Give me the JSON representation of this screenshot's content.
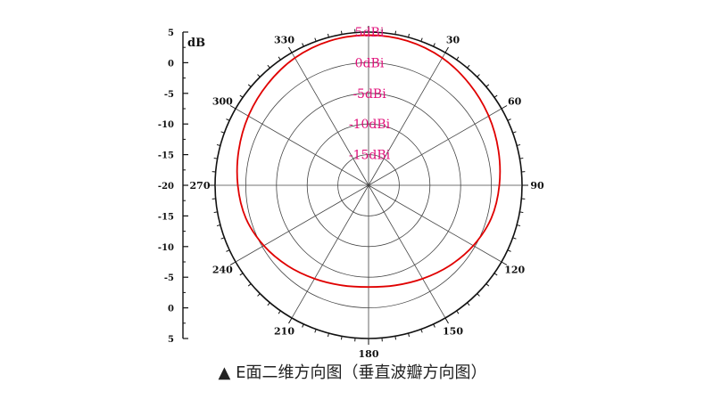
{
  "caption": "▲ E面二维方向图（垂直波瓣方向图）",
  "chart_data": {
    "type": "polar-line",
    "r_unit_label": "dB",
    "r_range": [
      -20,
      5
    ],
    "r_ticks": [
      5,
      0,
      -5,
      -10,
      -15,
      -20
    ],
    "left_axis_tick_labels": [
      "5",
      "0",
      "-5",
      "-10",
      "-15",
      "-20",
      "-15",
      "-10",
      "-5",
      "0",
      "5"
    ],
    "ring_labels": [
      "5dBi",
      "0dBi",
      "-5dBi",
      "-10dBi",
      "-15dBi"
    ],
    "angle_ticks": [
      0,
      30,
      60,
      90,
      120,
      150,
      180,
      210,
      240,
      270,
      300,
      330
    ],
    "angle_labels": [
      "",
      "30",
      "60",
      "90",
      "120",
      "150",
      "180",
      "210",
      "240",
      "270",
      "300",
      "330"
    ],
    "series": [
      {
        "color": "#e00000",
        "angle_deg": [
          0,
          15,
          30,
          45,
          60,
          75,
          90,
          105,
          120,
          135,
          150,
          165,
          180,
          195,
          210,
          225,
          240,
          255,
          270,
          285,
          300,
          315,
          330,
          345,
          360
        ],
        "gain_dbi": [
          4.5,
          4.4,
          4.0,
          3.3,
          2.6,
          1.9,
          1.3,
          0.7,
          -0.3,
          -1.4,
          -2.4,
          -3.1,
          -3.4,
          -3.1,
          -2.4,
          -1.4,
          -0.3,
          0.7,
          1.3,
          1.9,
          2.6,
          3.3,
          4.0,
          4.4,
          4.5
        ]
      }
    ],
    "grid": true,
    "colors": {
      "axis": "#111111",
      "grid": "#444444",
      "ring_label": "#e0107a",
      "trace": "#e00000"
    }
  }
}
